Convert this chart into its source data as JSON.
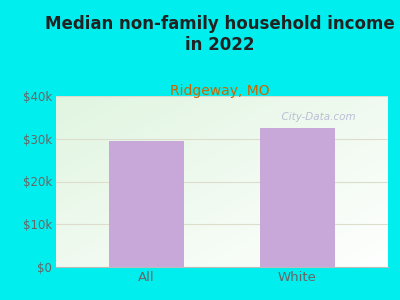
{
  "title": "Median non-family household income\nin 2022",
  "subtitle": "Ridgeway, MO",
  "categories": [
    "All",
    "White"
  ],
  "values": [
    29500,
    32500
  ],
  "bar_color": "#c8a8d8",
  "background_color": "#00eeee",
  "title_fontsize": 12,
  "subtitle_fontsize": 10,
  "subtitle_color": "#cc6600",
  "title_color": "#222222",
  "tick_color": "#666666",
  "ylim": [
    0,
    40000
  ],
  "yticks": [
    0,
    10000,
    20000,
    30000,
    40000
  ],
  "ytick_labels": [
    "$0",
    "$10k",
    "$20k",
    "$30k",
    "$40k"
  ],
  "watermark": "  City-Data.com",
  "watermark_color": "#aaaacc",
  "grid_color": "#ddddcc"
}
